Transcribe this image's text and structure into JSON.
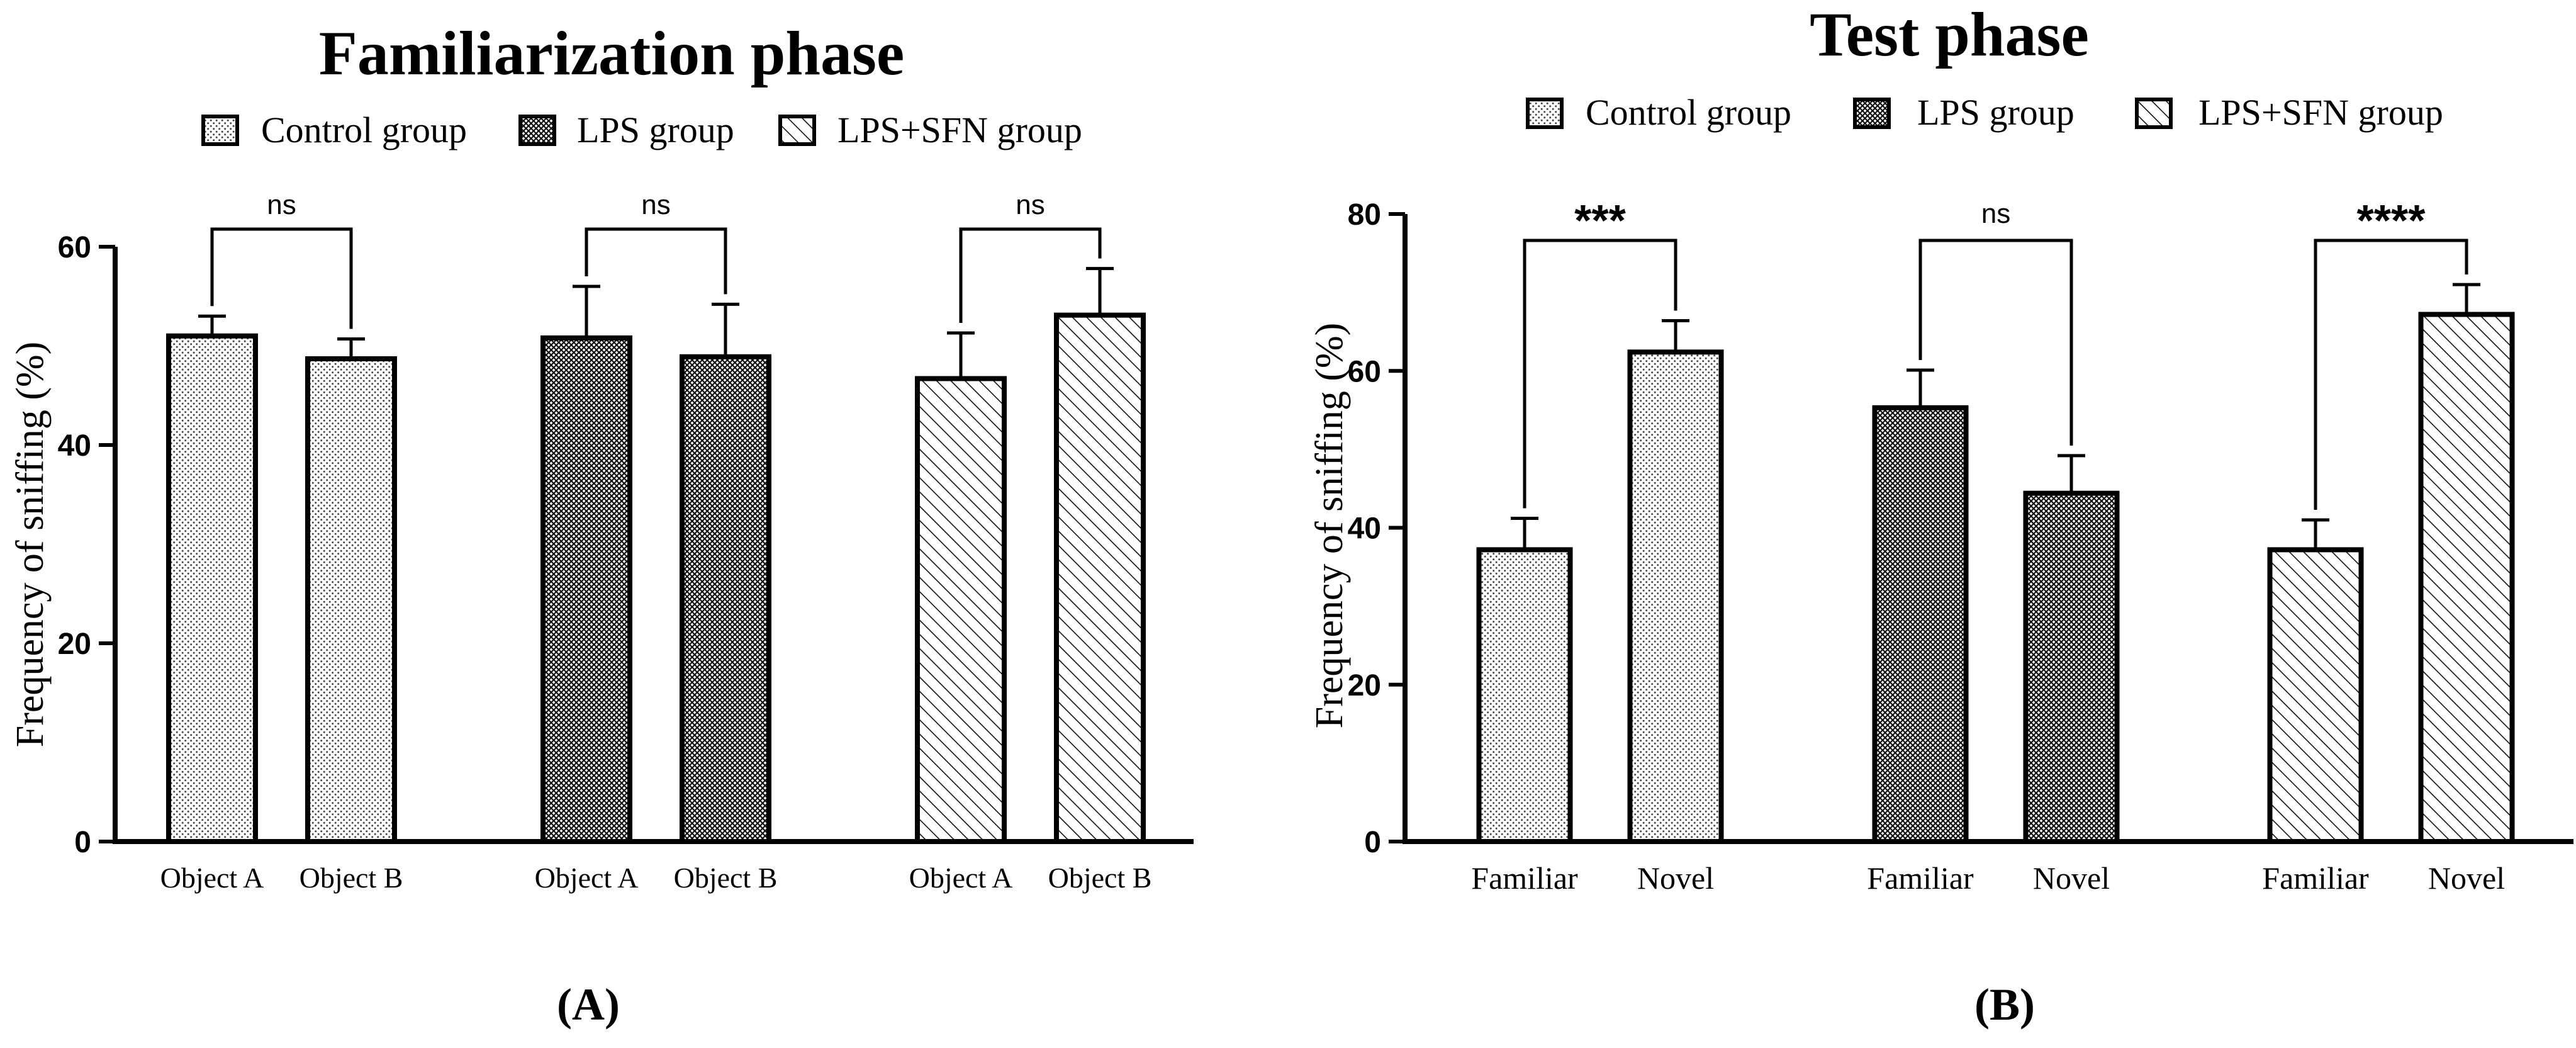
{
  "chart_data": [
    {
      "type": "bar",
      "panel_label": "(A)",
      "title": "Familiarization phase",
      "ylabel": "Frequency of sniffing (%)",
      "xlabel": "",
      "ylim": [
        0,
        60
      ],
      "yticks": [
        "0",
        "20",
        "40",
        "60"
      ],
      "legend": [
        "Control group",
        "LPS group",
        "LPS+SFN group"
      ],
      "groups": [
        {
          "name": "Control group",
          "categories": [
            "Object A",
            "Object B"
          ],
          "values": [
            51,
            48.7
          ],
          "errors": [
            2.0,
            2.0
          ],
          "significance": "ns"
        },
        {
          "name": "LPS group",
          "categories": [
            "Object A",
            "Object B"
          ],
          "values": [
            50.8,
            48.9
          ],
          "errors": [
            5.2,
            5.3
          ],
          "significance": "ns"
        },
        {
          "name": "LPS+SFN group",
          "categories": [
            "Object A",
            "Object B"
          ],
          "values": [
            46.7,
            53.1
          ],
          "errors": [
            4.6,
            4.7
          ],
          "significance": "ns"
        }
      ]
    },
    {
      "type": "bar",
      "panel_label": "(B)",
      "title": "Test phase",
      "ylabel": "Frequency of sniffing (%)",
      "xlabel": "",
      "ylim": [
        0,
        80
      ],
      "yticks": [
        "0",
        "20",
        "40",
        "60",
        "80"
      ],
      "legend": [
        "Control group",
        "LPS group",
        "LPS+SFN group"
      ],
      "groups": [
        {
          "name": "Control group",
          "categories": [
            "Familiar",
            "Novel"
          ],
          "values": [
            37.2,
            62.4
          ],
          "errors": [
            4.0,
            4.0
          ],
          "significance": "***"
        },
        {
          "name": "LPS group",
          "categories": [
            "Familiar",
            "Novel"
          ],
          "values": [
            55.3,
            44.4
          ],
          "errors": [
            4.8,
            4.8
          ],
          "significance": "ns"
        },
        {
          "name": "LPS+SFN group",
          "categories": [
            "Familiar",
            "Novel"
          ],
          "values": [
            37.2,
            67.2
          ],
          "errors": [
            3.8,
            3.8
          ],
          "significance": "****"
        }
      ]
    }
  ]
}
